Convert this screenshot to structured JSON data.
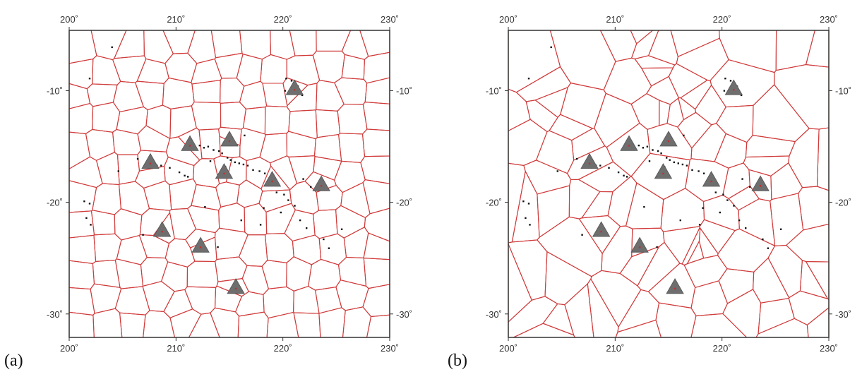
{
  "panels": [
    {
      "label": "(a)"
    },
    {
      "label": "(b)"
    }
  ],
  "axes": {
    "x_ticks": [
      {
        "value": 200,
        "label": "200˚"
      },
      {
        "value": 210,
        "label": "210˚"
      },
      {
        "value": 220,
        "label": "220˚"
      },
      {
        "value": 230,
        "label": "230˚"
      }
    ],
    "y_ticks": [
      {
        "value": -10,
        "label": "-10˚"
      },
      {
        "value": -20,
        "label": "-20˚"
      },
      {
        "value": -30,
        "label": "-30˚"
      }
    ],
    "xlim": [
      200,
      230
    ],
    "ylim": [
      -32.1,
      -4.6
    ]
  },
  "colors": {
    "cell_lines": "#d03a3a",
    "marker_fill": "#6e6e6e",
    "marker_dot": "#c03030",
    "islands": "#111111",
    "frame": "#333333"
  },
  "stations": [
    {
      "lon": 221.1,
      "lat": -9.8
    },
    {
      "lon": 211.3,
      "lat": -14.8
    },
    {
      "lon": 215.0,
      "lat": -14.4
    },
    {
      "lon": 207.6,
      "lat": -16.4
    },
    {
      "lon": 214.5,
      "lat": -17.3
    },
    {
      "lon": 219.0,
      "lat": -18.0
    },
    {
      "lon": 223.6,
      "lat": -18.4
    },
    {
      "lon": 208.7,
      "lat": -22.5
    },
    {
      "lon": 212.3,
      "lat": -23.9
    },
    {
      "lon": 215.6,
      "lat": -27.6
    }
  ],
  "islands": [
    [
      201.9,
      -8.9
    ],
    [
      204.0,
      -6.1
    ],
    [
      220.3,
      -8.9
    ],
    [
      220.8,
      -9.1
    ],
    [
      221.4,
      -9.6
    ],
    [
      221.6,
      -10.2
    ],
    [
      221.8,
      -10.4
    ],
    [
      220.2,
      -10.0
    ],
    [
      212.2,
      -14.9
    ],
    [
      212.6,
      -15.1
    ],
    [
      213.0,
      -15.0
    ],
    [
      213.5,
      -15.3
    ],
    [
      214.0,
      -15.4
    ],
    [
      214.3,
      -15.6
    ],
    [
      214.8,
      -16.0
    ],
    [
      215.1,
      -16.2
    ],
    [
      215.5,
      -16.4
    ],
    [
      215.9,
      -16.5
    ],
    [
      216.3,
      -16.6
    ],
    [
      216.7,
      -16.7
    ],
    [
      217.2,
      -17.1
    ],
    [
      217.8,
      -17.2
    ],
    [
      218.3,
      -17.4
    ],
    [
      214.6,
      -16.8
    ],
    [
      213.2,
      -16.3
    ],
    [
      210.3,
      -17.3
    ],
    [
      210.8,
      -17.6
    ],
    [
      211.1,
      -17.7
    ],
    [
      209.4,
      -16.9
    ],
    [
      208.6,
      -16.7
    ],
    [
      206.4,
      -16.1
    ],
    [
      204.6,
      -17.2
    ],
    [
      201.4,
      -19.9
    ],
    [
      201.9,
      -20.1
    ],
    [
      201.6,
      -21.4
    ],
    [
      202.0,
      -22.0
    ],
    [
      206.9,
      -22.9
    ],
    [
      219.4,
      -19.1
    ],
    [
      220.1,
      -19.3
    ],
    [
      220.5,
      -19.8
    ],
    [
      221.1,
      -20.3
    ],
    [
      221.6,
      -21.6
    ],
    [
      222.2,
      -22.3
    ],
    [
      223.8,
      -23.3
    ],
    [
      224.3,
      -24.1
    ],
    [
      218.2,
      -20.5
    ],
    [
      217.9,
      -22.0
    ],
    [
      216.1,
      -21.6
    ],
    [
      212.7,
      -20.4
    ],
    [
      225.5,
      -22.4
    ],
    [
      221.9,
      -17.9
    ],
    [
      222.6,
      -18.6
    ],
    [
      216.4,
      -14.0
    ],
    [
      208.2,
      -16.7
    ],
    [
      219.8,
      -20.9
    ],
    [
      213.9,
      -24.0
    ]
  ]
}
